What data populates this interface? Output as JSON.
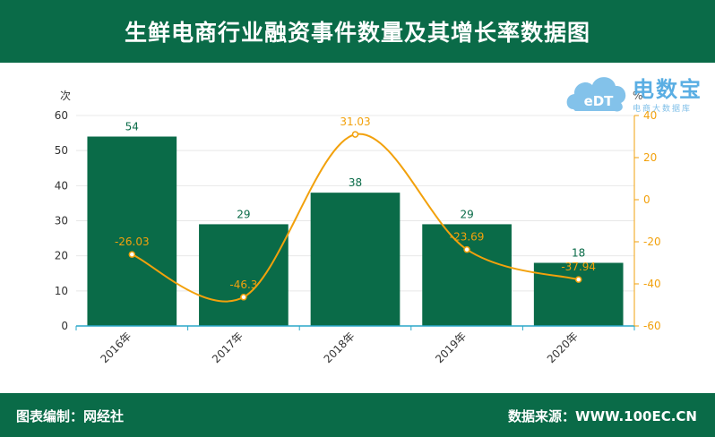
{
  "header": {
    "title": "生鲜电商行业融资事件数量及其增长率数据图"
  },
  "footer": {
    "left": "图表编制：网经社",
    "right": "数据来源：WWW.100EC.CN"
  },
  "logo": {
    "name": "电数宝",
    "sub": "电商大数据库",
    "mark": "eDT"
  },
  "colors": {
    "bar": "#0a6b48",
    "line": "#f2a10c",
    "band": "#0a6b48"
  },
  "chart_data": {
    "type": "bar+line",
    "categories": [
      "2016年",
      "2017年",
      "2018年",
      "2019年",
      "2020年"
    ],
    "series": [
      {
        "type": "bar",
        "axis": "left",
        "values": [
          54,
          29,
          38,
          29,
          18
        ]
      },
      {
        "type": "line",
        "axis": "right",
        "values": [
          -26.03,
          -46.3,
          31.03,
          -23.69,
          -37.94
        ]
      }
    ],
    "y_left": {
      "unit": "次",
      "min": 0,
      "max": 60,
      "ticks": [
        0,
        10,
        20,
        30,
        40,
        50,
        60
      ]
    },
    "y_right": {
      "unit": "%",
      "min": -60,
      "max": 40,
      "ticks": [
        -60,
        -40,
        -20,
        0,
        20,
        40
      ]
    },
    "grid": true,
    "legend": "none"
  }
}
